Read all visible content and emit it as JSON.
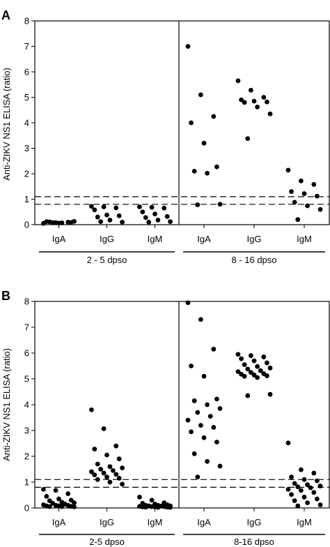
{
  "chart_data": [
    {
      "type": "scatter",
      "panel": "A",
      "ylabel": "Anti-ZIKV NS1 ELISA (ratio)",
      "ylim": [
        0,
        8
      ],
      "yticks": [
        "0",
        "1",
        "2",
        "3",
        "4",
        "5",
        "6",
        "7",
        "8"
      ],
      "cutoff_lines": [
        0.8,
        1.1
      ],
      "groups": [
        {
          "label": "2 - 5 dpso",
          "categories": [
            {
              "label": "IgA",
              "values": [
                0.05,
                0.08,
                0.1,
                0.12,
                0.06,
                0.09,
                0.11,
                0.07,
                0.13,
                0.08
              ]
            },
            {
              "label": "IgG",
              "values": [
                0.72,
                0.7,
                0.66,
                0.58,
                0.38,
                0.35,
                0.3,
                0.18,
                0.1,
                0.12
              ]
            },
            {
              "label": "IgM",
              "values": [
                0.7,
                0.68,
                0.65,
                0.5,
                0.42,
                0.32,
                0.28,
                0.18,
                0.12,
                0.1
              ]
            }
          ]
        },
        {
          "label": "8 - 16 dpso",
          "categories": [
            {
              "label": "IgA",
              "values": [
                7.0,
                5.1,
                4.25,
                4.0,
                3.2,
                2.27,
                2.1,
                2.02,
                0.8,
                0.78
              ]
            },
            {
              "label": "IgG",
              "values": [
                5.65,
                5.28,
                5.0,
                4.9,
                4.85,
                4.82,
                4.8,
                4.62,
                4.35,
                3.38
              ]
            },
            {
              "label": "IgM",
              "values": [
                2.14,
                1.72,
                1.58,
                1.3,
                1.22,
                1.12,
                0.88,
                0.74,
                0.6,
                0.2
              ]
            }
          ]
        }
      ]
    },
    {
      "type": "scatter",
      "panel": "B",
      "ylabel": "Anti-ZIKV NS1 ELISA (ratio)",
      "ylim": [
        0,
        8
      ],
      "yticks": [
        "0",
        "1",
        "2",
        "3",
        "4",
        "5",
        "6",
        "7",
        "8"
      ],
      "cutoff_lines": [
        0.8,
        1.1
      ],
      "groups": [
        {
          "label": "2-5 dpso",
          "categories": [
            {
              "label": "IgA",
              "values": [
                0.72,
                0.68,
                0.55,
                0.45,
                0.35,
                0.3,
                0.28,
                0.22,
                0.2,
                0.18,
                0.15,
                0.12,
                0.1,
                0.1,
                0.08,
                0.08,
                0.06,
                0.05,
                0.05,
                0.04
              ]
            },
            {
              "label": "IgG",
              "values": [
                3.8,
                3.07,
                2.4,
                2.28,
                2.05,
                1.9,
                1.7,
                1.6,
                1.55,
                1.5,
                1.45,
                1.4,
                1.35,
                1.3,
                1.28,
                1.2,
                1.15,
                1.1,
                1.0,
                0.92
              ]
            },
            {
              "label": "IgM",
              "values": [
                0.42,
                0.3,
                0.2,
                0.18,
                0.15,
                0.12,
                0.1,
                0.1,
                0.08,
                0.08,
                0.07,
                0.06,
                0.05,
                0.05,
                0.04,
                0.04,
                0.03,
                0.03,
                0.02,
                0.02
              ]
            }
          ]
        },
        {
          "label": "8-16 dpso",
          "categories": [
            {
              "label": "IgA",
              "values": [
                7.95,
                7.3,
                6.15,
                5.5,
                5.1,
                4.22,
                4.15,
                4.0,
                3.85,
                3.7,
                3.55,
                3.4,
                3.2,
                3.12,
                2.95,
                2.72,
                2.55,
                2.1,
                1.8,
                1.62,
                1.2
              ]
            },
            {
              "label": "IgG",
              "values": [
                5.95,
                5.9,
                5.85,
                5.78,
                5.7,
                5.62,
                5.55,
                5.48,
                5.42,
                5.38,
                5.32,
                5.28,
                5.25,
                5.2,
                5.18,
                5.15,
                5.12,
                5.1,
                5.05,
                4.4,
                4.35
              ]
            },
            {
              "label": "IgM",
              "values": [
                2.52,
                1.48,
                1.35,
                1.2,
                1.1,
                1.05,
                0.95,
                0.9,
                0.85,
                0.82,
                0.78,
                0.72,
                0.68,
                0.6,
                0.52,
                0.42,
                0.35,
                0.28,
                0.2,
                0.12,
                0.08
              ]
            }
          ]
        }
      ]
    }
  ]
}
